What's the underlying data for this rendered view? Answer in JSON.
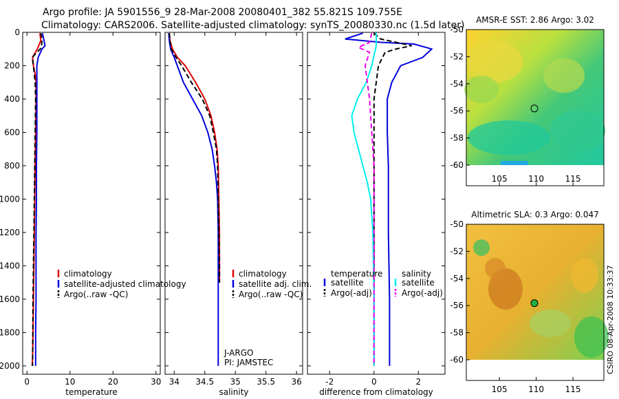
{
  "header": {
    "line1": "Argo profile: JA 5901556_9 28-Mar-2008 20080401_382 55.821S 109.755E",
    "line2": "Climatology: CARS2006. Satellite-adjusted climatology: synTS_20080330.nc (1.5d later)"
  },
  "colors": {
    "climatology": "#e00000",
    "satellite": "#0000dd",
    "argo": "#000000",
    "cyan": "#00eeee",
    "magenta": "#ee00ee"
  },
  "chart_data": [
    {
      "type": "line",
      "xlabel": "temperature",
      "xlim": [
        -1,
        31
      ],
      "xticks": [
        "0",
        "10",
        "20",
        "30"
      ],
      "ylim": [
        2050,
        0
      ],
      "yticks": [
        "0",
        "200",
        "400",
        "600",
        "800",
        "1000",
        "1200",
        "1400",
        "1600",
        "1800",
        "2000"
      ],
      "legend": [
        "climatology",
        "satellite-adjusted climatology",
        "Argo(..raw -QC)"
      ],
      "series": [
        {
          "name": "climatology",
          "color": "climatology",
          "dash": false,
          "x": [
            3.0,
            3.2,
            2.4,
            1.3,
            1.5,
            1.9,
            2.1,
            2.1,
            2.0,
            1.9,
            1.8,
            1.7,
            1.6,
            1.5,
            1.4,
            1.3,
            1.2
          ],
          "y": [
            5,
            50,
            100,
            150,
            200,
            250,
            300,
            400,
            600,
            800,
            1000,
            1200,
            1400,
            1600,
            1800,
            1950,
            2000
          ]
        },
        {
          "name": "satellite-adjusted climatology",
          "color": "satellite",
          "dash": false,
          "x": [
            3.6,
            3.8,
            4.2,
            3.5,
            2.6,
            2.3,
            2.3,
            2.3,
            2.3,
            2.2,
            2.2,
            2.1,
            2.1,
            2.1,
            2.0,
            2.0
          ],
          "y": [
            5,
            30,
            80,
            100,
            150,
            200,
            300,
            400,
            600,
            800,
            1000,
            1200,
            1400,
            1600,
            1800,
            2000
          ]
        },
        {
          "name": "Argo(..raw -QC)",
          "color": "argo",
          "dash": true,
          "x": [
            3.2,
            3.5,
            3.4,
            3.1,
            1.2,
            1.5,
            1.9,
            2.0,
            1.9,
            1.8,
            1.7,
            1.6,
            1.5,
            1.4,
            1.3
          ],
          "y": [
            5,
            40,
            80,
            100,
            150,
            200,
            300,
            400,
            600,
            800,
            1000,
            1200,
            1400,
            1600,
            2000
          ]
        }
      ]
    },
    {
      "type": "line",
      "xlabel": "salinity",
      "xlim": [
        33.85,
        36.1
      ],
      "xticks": [
        "34",
        "34.5",
        "35",
        "35.5",
        "36"
      ],
      "ylim": [
        2050,
        0
      ],
      "legend": [
        "climatology",
        "satellite adj. clim.",
        "Argo(..raw -QC)"
      ],
      "annotations": [
        "J-ARGO",
        "PI: JAMSTEC"
      ],
      "series": [
        {
          "name": "climatology",
          "color": "climatology",
          "dash": false,
          "x": [
            33.92,
            33.93,
            33.97,
            34.05,
            34.18,
            34.35,
            34.5,
            34.6,
            34.66,
            34.7,
            34.72,
            34.73,
            34.74,
            34.74,
            34.74
          ],
          "y": [
            5,
            50,
            100,
            150,
            200,
            300,
            400,
            500,
            600,
            700,
            800,
            1000,
            1200,
            1400,
            1500
          ]
        },
        {
          "name": "satellite adj. clim.",
          "color": "satellite",
          "dash": false,
          "x": [
            33.91,
            33.92,
            33.94,
            34.0,
            34.15,
            34.3,
            34.45,
            34.55,
            34.62,
            34.66,
            34.69,
            34.71,
            34.72,
            34.72,
            34.72,
            34.72
          ],
          "y": [
            5,
            50,
            100,
            150,
            300,
            400,
            500,
            600,
            700,
            800,
            900,
            1000,
            1200,
            1400,
            1800,
            2000
          ]
        },
        {
          "name": "Argo(..raw -QC)",
          "color": "argo",
          "dash": true,
          "x": [
            33.92,
            33.93,
            33.95,
            34.03,
            34.12,
            34.28,
            34.46,
            34.58,
            34.64,
            34.69,
            34.71,
            34.72,
            34.73,
            34.74,
            34.74
          ],
          "y": [
            5,
            50,
            100,
            150,
            200,
            300,
            400,
            500,
            600,
            700,
            800,
            1000,
            1200,
            1400,
            1500
          ]
        }
      ]
    },
    {
      "type": "line",
      "xlabel": "difference from climatology",
      "xlim": [
        -3,
        3.2
      ],
      "xticks": [
        "-2",
        "0",
        "2"
      ],
      "ylim": [
        2050,
        0
      ],
      "legend_groups": [
        {
          "title": "temperature",
          "entries": [
            "satellite",
            "Argo(-adj)"
          ]
        },
        {
          "title": "salinity",
          "entries": [
            "satellite",
            "Argo(-adj)"
          ]
        }
      ],
      "series": [
        {
          "name": "satellite",
          "group": "temperature",
          "color": "satellite",
          "dash": false,
          "x": [
            -0.5,
            -1.3,
            0.3,
            1.8,
            2.6,
            2.2,
            1.2,
            0.8,
            0.6,
            0.6,
            0.6,
            0.65,
            0.65,
            0.65,
            0.7,
            0.7
          ],
          "y": [
            5,
            40,
            60,
            70,
            100,
            150,
            200,
            300,
            400,
            500,
            600,
            800,
            1000,
            1200,
            1600,
            2000
          ]
        },
        {
          "name": "Argo(-adj)",
          "group": "temperature",
          "color": "argo",
          "dash": true,
          "x": [
            0.0,
            0.3,
            1.0,
            1.7,
            1.0,
            0.5,
            0.2,
            0.1,
            0.0,
            0.0,
            0.0,
            0.0,
            0.0,
            0.0,
            0.0
          ],
          "y": [
            5,
            40,
            60,
            80,
            100,
            120,
            200,
            300,
            400,
            600,
            800,
            1000,
            1200,
            1600,
            2000
          ]
        },
        {
          "name": "satellite",
          "group": "salinity",
          "color": "cyan",
          "dash": false,
          "x": [
            0.1,
            0.1,
            -0.1,
            -0.35,
            -0.75,
            -1.0,
            -0.9,
            -0.7,
            -0.5,
            -0.3,
            -0.15,
            -0.05,
            0.0,
            0.0
          ],
          "y": [
            5,
            80,
            200,
            300,
            400,
            500,
            600,
            700,
            800,
            900,
            1000,
            1200,
            1600,
            2000
          ]
        },
        {
          "name": "Argo(-adj)",
          "group": "salinity",
          "color": "magenta",
          "dash": true,
          "x": [
            -0.1,
            -0.2,
            -0.7,
            -0.2,
            -0.4,
            -0.3,
            -0.2,
            -0.1,
            0.0,
            0.0,
            0.0
          ],
          "y": [
            5,
            60,
            90,
            120,
            200,
            300,
            400,
            600,
            800,
            1200,
            2000
          ]
        }
      ]
    }
  ],
  "maps": [
    {
      "title": "AMSR-E SST: 2.86 Argo: 3.02",
      "xticks": [
        "105",
        "110",
        "115"
      ],
      "yticks": [
        "-50",
        "-52",
        "-54",
        "-56",
        "-58",
        "-60"
      ],
      "marker": {
        "lon": 109.755,
        "lat": -55.821,
        "filled": false
      }
    },
    {
      "title": "Altimetric SLA: 0.3 Argo: 0.047",
      "xticks": [
        "105",
        "110",
        "115"
      ],
      "yticks": [
        "-50",
        "-52",
        "-54",
        "-56",
        "-58",
        "-60"
      ],
      "marker": {
        "lon": 109.755,
        "lat": -55.821,
        "filled": true
      }
    }
  ],
  "stamp": "CSIRO 08-Apr-2008 10:33:37"
}
